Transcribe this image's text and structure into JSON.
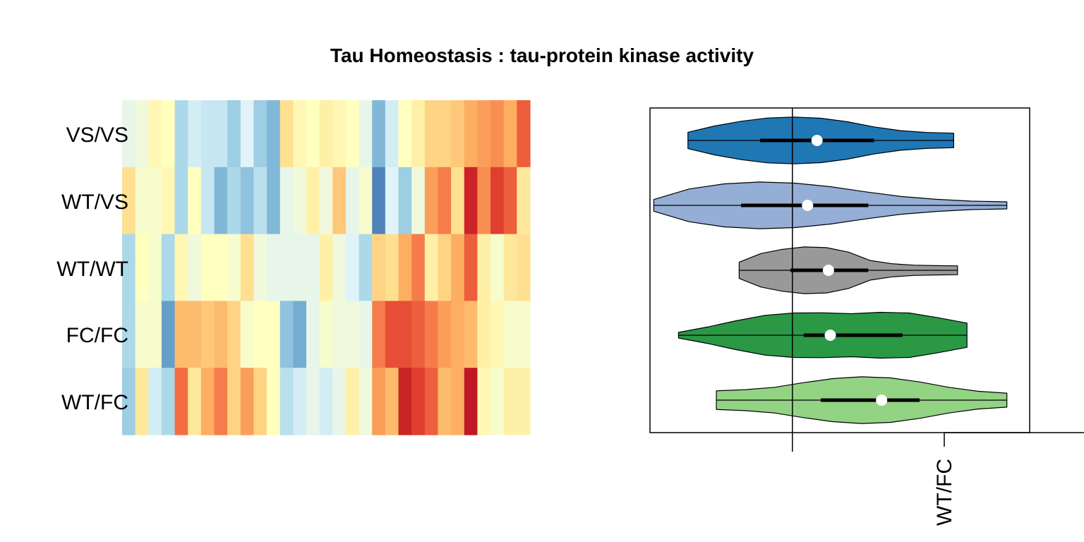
{
  "colors": {
    "heatmap_palette": [
      "#313695",
      "#4575b4",
      "#74add1",
      "#abd9e9",
      "#e0f3f8",
      "#ffffbf",
      "#fee090",
      "#fdae61",
      "#f46d43",
      "#d73027",
      "#a50026"
    ],
    "axis": "#000000",
    "median_dot": "#ffffff"
  },
  "chart_data": [
    {
      "type": "heatmap",
      "title": "Tau Homeostasis : tau-protein kinase activity",
      "rows": [
        "VS/VS",
        "WT/VS",
        "WT/WT",
        "FC/FC",
        "WT/FC"
      ],
      "value_range": [
        -1,
        1
      ],
      "values": [
        [
          -0.15,
          -0.1,
          0.05,
          0.0,
          -0.4,
          -0.25,
          -0.3,
          -0.3,
          -0.45,
          -0.2,
          -0.45,
          -0.55,
          0.2,
          0.05,
          0.0,
          0.1,
          0.05,
          0.0,
          -0.15,
          -0.55,
          -0.25,
          0.0,
          0.1,
          0.25,
          0.25,
          0.3,
          0.4,
          0.45,
          0.5,
          0.4,
          0.65
        ],
        [
          0.2,
          -0.05,
          -0.05,
          0.05,
          -0.4,
          0.0,
          -0.3,
          -0.55,
          -0.4,
          -0.5,
          -0.35,
          -0.55,
          -0.15,
          -0.1,
          0.1,
          -0.1,
          0.3,
          -0.15,
          -0.05,
          -0.75,
          -0.2,
          -0.45,
          -0.1,
          0.45,
          0.55,
          0.2,
          0.85,
          0.5,
          0.75,
          0.65,
          0.15
        ],
        [
          -0.4,
          0.0,
          -0.05,
          -0.4,
          0.05,
          -0.1,
          0.0,
          0.0,
          -0.05,
          0.2,
          -0.1,
          -0.15,
          -0.15,
          -0.15,
          -0.15,
          0.1,
          -0.1,
          -0.2,
          -0.4,
          0.25,
          0.2,
          0.4,
          0.55,
          0.1,
          0.25,
          0.4,
          0.65,
          0.1,
          -0.05,
          0.15,
          0.2
        ],
        [
          -0.4,
          -0.05,
          -0.05,
          -0.65,
          0.35,
          0.35,
          0.3,
          0.35,
          0.25,
          -0.05,
          0.0,
          0.0,
          -0.5,
          -0.6,
          -0.15,
          -0.05,
          -0.1,
          -0.1,
          -0.15,
          0.55,
          0.7,
          0.7,
          0.65,
          0.55,
          0.45,
          0.4,
          0.35,
          0.1,
          0.05,
          -0.05,
          -0.05
        ],
        [
          -0.45,
          0.15,
          -0.25,
          -0.4,
          0.6,
          0.15,
          0.4,
          0.55,
          0.25,
          0.45,
          0.25,
          0.0,
          -0.35,
          -0.25,
          -0.15,
          -0.25,
          -0.15,
          0.1,
          -0.1,
          0.45,
          0.35,
          0.85,
          0.75,
          0.65,
          0.35,
          0.4,
          0.9,
          0.05,
          -0.05,
          0.1,
          0.1
        ]
      ]
    },
    {
      "type": "violin",
      "orientation": "horizontal",
      "tick_labels": [
        "WT/FC"
      ],
      "xlim": [
        -1.0,
        1.0
      ],
      "reference_line_x": -0.25,
      "labeled_tick_x": 0.55,
      "series": [
        {
          "label": "VS/VS",
          "color": "#1f77b4",
          "range": [
            -0.8,
            0.6
          ],
          "q1": -0.42,
          "median": -0.12,
          "q3": 0.18,
          "density": [
            0.35,
            0.62,
            0.82,
            0.96,
            1.0,
            0.95,
            0.8,
            0.58,
            0.42,
            0.34,
            0.31
          ]
        },
        {
          "label": "WT/VS",
          "color": "#95aed5",
          "range": [
            -0.98,
            0.88
          ],
          "q1": -0.52,
          "median": -0.17,
          "q3": 0.15,
          "density": [
            0.25,
            0.7,
            0.92,
            1.0,
            0.95,
            0.8,
            0.58,
            0.38,
            0.26,
            0.18,
            0.15
          ]
        },
        {
          "label": "WT/WT",
          "color": "#999999",
          "range": [
            -0.53,
            0.62
          ],
          "q1": -0.26,
          "median": -0.06,
          "q3": 0.15,
          "density": [
            0.35,
            0.72,
            0.9,
            1.0,
            0.97,
            0.78,
            0.42,
            0.28,
            0.22,
            0.2,
            0.19
          ]
        },
        {
          "label": "FC/FC",
          "color": "#2a9845",
          "range": [
            -0.85,
            0.67
          ],
          "q1": -0.19,
          "median": -0.05,
          "q3": 0.33,
          "density": [
            0.12,
            0.35,
            0.62,
            0.85,
            0.95,
            0.96,
            0.92,
            0.98,
            0.95,
            0.75,
            0.52
          ]
        },
        {
          "label": "WT/FC",
          "color": "#93d384",
          "range": [
            -0.65,
            0.88
          ],
          "q1": -0.1,
          "median": 0.22,
          "q3": 0.42,
          "density": [
            0.4,
            0.45,
            0.55,
            0.75,
            0.92,
            1.0,
            0.95,
            0.78,
            0.55,
            0.38,
            0.3
          ]
        }
      ]
    }
  ]
}
